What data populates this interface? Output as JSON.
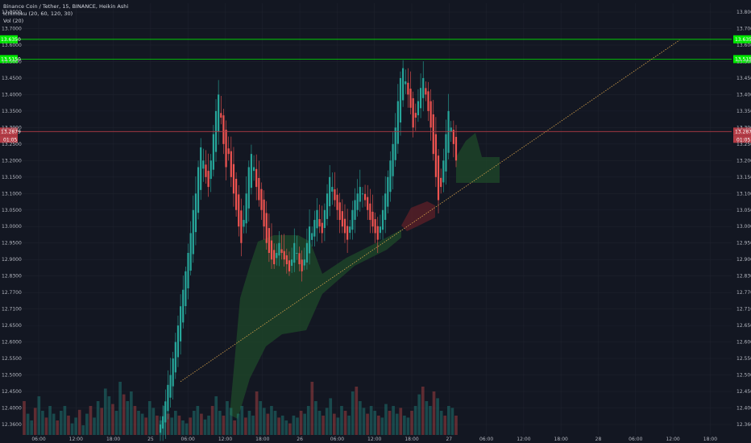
{
  "legend": {
    "symbol_line": "Binance Coin / Tether, 15, BINANCE, Heikin Ashi",
    "ichimoku_line": "Ichimoku (20, 60, 120, 30)",
    "vol_line": "Vol (20)"
  },
  "colors": {
    "background": "#131722",
    "up": "#26a69a",
    "down": "#ef5350",
    "green_line": "#00e600",
    "red_line": "#b43c46",
    "trend_line": "#d7a24b",
    "cloud_green": "#1f4a2a",
    "cloud_red": "#5a1f28"
  },
  "chart_data": {
    "type": "candlestick",
    "y_ticks": [
      "13.8000",
      "13.7000",
      "13.6000",
      "13.5000",
      "13.4500",
      "13.4000",
      "13.3500",
      "13.3000",
      "13.2500",
      "13.2000",
      "13.1500",
      "13.1000",
      "13.0500",
      "13.0000",
      "12.9500",
      "12.9000",
      "12.8300",
      "12.7700",
      "12.7100",
      "12.6500",
      "12.6000",
      "12.5500",
      "12.5000",
      "12.4500",
      "12.4000",
      "12.3600"
    ],
    "x_ticks": [
      "06:00",
      "12:00",
      "18:00",
      "25",
      "06:00",
      "12:00",
      "18:00",
      "26",
      "06:00",
      "12:00",
      "18:00",
      "27",
      "06:00",
      "12:00",
      "18:00",
      "28",
      "06:00",
      "12:00",
      "18:00"
    ],
    "ylim": [
      12.33,
      13.82
    ],
    "horizontal_levels": [
      {
        "label": "13.6350",
        "value": 13.635,
        "color": "#00e600"
      },
      {
        "label": "13.5150",
        "value": 13.515,
        "color": "#00e600"
      },
      {
        "label": "13.2879",
        "value": 13.2879,
        "color": "#b43c46"
      }
    ],
    "countdown_label": "01:05",
    "trend_line": {
      "start": {
        "x": 0.228,
        "y": 12.48
      },
      "end": {
        "x": 0.927,
        "y": 13.63
      }
    },
    "candles_close": [
      12.36,
      12.38,
      12.42,
      12.47,
      12.5,
      12.55,
      12.6,
      12.65,
      12.72,
      12.78,
      12.85,
      12.92,
      12.98,
      13.05,
      13.1,
      13.18,
      13.24,
      13.2,
      13.15,
      13.12,
      13.2,
      13.28,
      13.35,
      13.4,
      13.33,
      13.25,
      13.18,
      13.22,
      13.15,
      13.1,
      13.05,
      13.0,
      12.95,
      13.02,
      13.1,
      13.18,
      13.22,
      13.18,
      13.12,
      13.08,
      13.05,
      13.0,
      12.95,
      12.92,
      12.9,
      12.88,
      12.92,
      12.95,
      12.92,
      12.9,
      12.88,
      12.85,
      12.9,
      12.95,
      12.92,
      12.88,
      12.85,
      12.9,
      12.95,
      13.0,
      12.98,
      13.02,
      13.05,
      13.0,
      12.98,
      13.05,
      13.1,
      13.15,
      13.12,
      13.08,
      13.05,
      13.02,
      13.0,
      12.98,
      12.96,
      13.0,
      13.05,
      13.08,
      13.1,
      13.12,
      13.1,
      13.08,
      13.05,
      13.02,
      13.0,
      12.98,
      12.96,
      13.0,
      13.05,
      13.1,
      13.15,
      13.2,
      13.25,
      13.3,
      13.38,
      13.45,
      13.48,
      13.44,
      13.4,
      13.36,
      13.3,
      13.33,
      13.38,
      13.42,
      13.45,
      13.4,
      13.35,
      13.3,
      13.22,
      13.15,
      13.08,
      13.12,
      13.2,
      13.28,
      13.35,
      13.3,
      13.25,
      13.2
    ],
    "volume": [
      0.35,
      0.22,
      0.15,
      0.28,
      0.4,
      0.25,
      0.18,
      0.3,
      0.22,
      0.15,
      0.25,
      0.3,
      0.2,
      0.12,
      0.18,
      0.26,
      0.1,
      0.22,
      0.3,
      0.18,
      0.35,
      0.28,
      0.48,
      0.4,
      0.32,
      0.25,
      0.55,
      0.42,
      0.35,
      0.45,
      0.3,
      0.25,
      0.22,
      0.18,
      0.35,
      0.28,
      0.2,
      0.15,
      0.3,
      0.22,
      0.18,
      0.25,
      0.2,
      0.15,
      0.12,
      0.18,
      0.25,
      0.3,
      0.22,
      0.16,
      0.2,
      0.3,
      0.4,
      0.25,
      0.2,
      0.35,
      0.28,
      0.15,
      0.22,
      0.3,
      0.18,
      0.25,
      0.2,
      0.45,
      0.35,
      0.28,
      0.22,
      0.3,
      0.25,
      0.18,
      0.2,
      0.15,
      0.12,
      0.2,
      0.18,
      0.25,
      0.22,
      0.3,
      0.55,
      0.35,
      0.25,
      0.2,
      0.28,
      0.38,
      0.22,
      0.18,
      0.3,
      0.25,
      0.2,
      0.45,
      0.5,
      0.35,
      0.28,
      0.22,
      0.3,
      0.25,
      0.2,
      0.18,
      0.32,
      0.25,
      0.3,
      0.22,
      0.28,
      0.2,
      0.18,
      0.25,
      0.3,
      0.42,
      0.5,
      0.35,
      0.3,
      0.45,
      0.38,
      0.25,
      0.2,
      0.3,
      0.28,
      0.2
    ]
  }
}
